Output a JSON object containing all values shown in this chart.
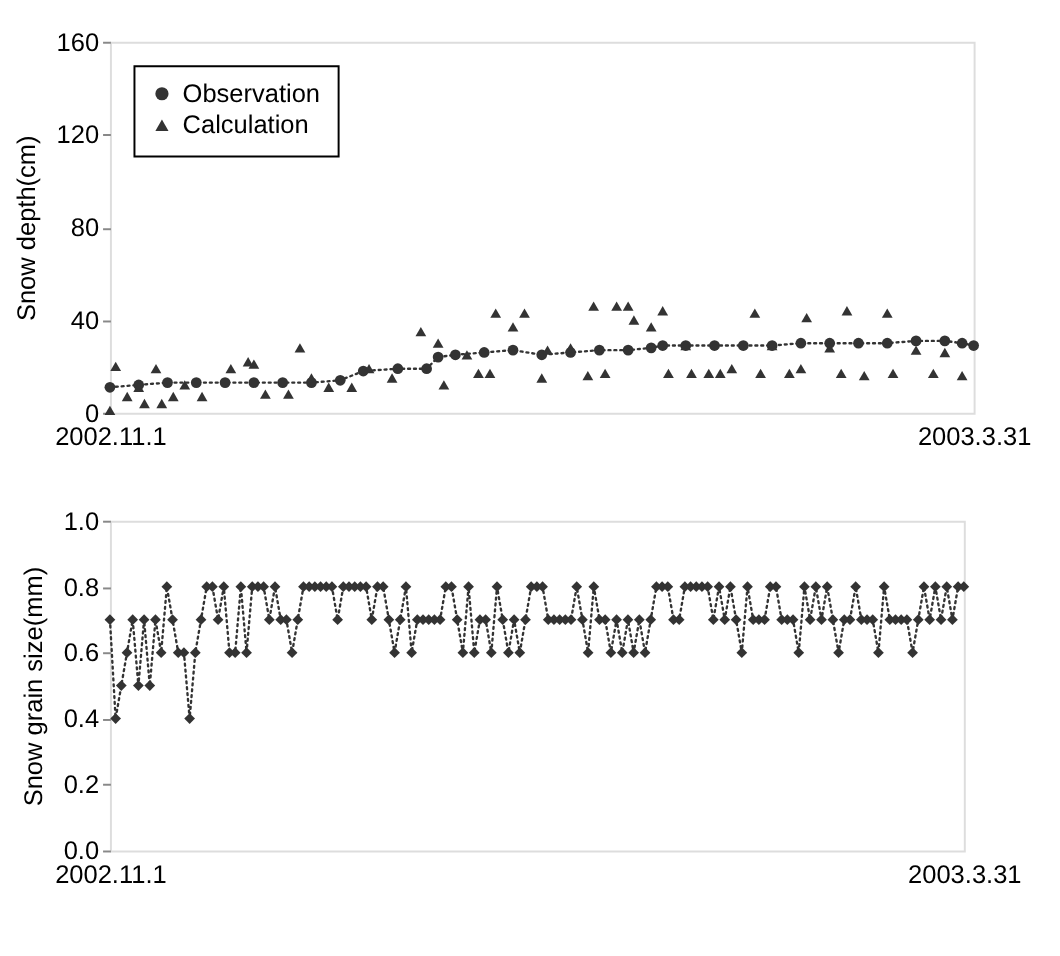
{
  "chart_data": [
    {
      "type": "line",
      "ylabel": "Snow depth(cm)",
      "xlim": [
        "2002-11-01",
        "2003-03-31"
      ],
      "xticks": [
        {
          "value": "2002-11-01",
          "label": "2002.11.1"
        },
        {
          "value": "2003-03-31",
          "label": "2003.3.31"
        }
      ],
      "ylim": [
        0,
        160
      ],
      "yticks": [
        0,
        40,
        80,
        120,
        160
      ],
      "grid": false,
      "legend": "top left",
      "series": [
        {
          "name": "Observation",
          "marker": "circle",
          "line_style": "dotted",
          "color": "#333333",
          "x": [
            "2002-11-01",
            "2002-11-06",
            "2002-11-11",
            "2002-11-16",
            "2002-11-21",
            "2002-11-26",
            "2002-12-01",
            "2002-12-06",
            "2002-12-11",
            "2002-12-15",
            "2002-12-21",
            "2002-12-26",
            "2002-12-28",
            "2002-12-31",
            "2003-01-05",
            "2003-01-10",
            "2003-01-15",
            "2003-01-20",
            "2003-01-25",
            "2003-01-30",
            "2003-02-03",
            "2003-02-05",
            "2003-02-09",
            "2003-02-14",
            "2003-02-19",
            "2003-02-24",
            "2003-03-01",
            "2003-03-06",
            "2003-03-11",
            "2003-03-16",
            "2003-03-21",
            "2003-03-26",
            "2003-03-29",
            "2003-03-31"
          ],
          "values": [
            11,
            12,
            13,
            13,
            13,
            13,
            13,
            13,
            14,
            18,
            19,
            19,
            24,
            25,
            26,
            27,
            25,
            26,
            27,
            27,
            28,
            29,
            29,
            29,
            29,
            29,
            30,
            30,
            30,
            30,
            31,
            31,
            30,
            29
          ]
        },
        {
          "name": "Calculation",
          "type": "scatter",
          "marker": "triangle",
          "color": "#333333",
          "x": [
            "2002-11-01",
            "2002-11-02",
            "2002-11-04",
            "2002-11-06",
            "2002-11-07",
            "2002-11-09",
            "2002-11-10",
            "2002-11-12",
            "2002-11-14",
            "2002-11-17",
            "2002-11-22",
            "2002-11-25",
            "2002-11-26",
            "2002-11-28",
            "2002-12-02",
            "2002-12-04",
            "2002-12-06",
            "2002-12-09",
            "2002-12-13",
            "2002-12-16",
            "2002-12-20",
            "2002-12-25",
            "2002-12-28",
            "2002-12-29",
            "2003-01-02",
            "2003-01-04",
            "2003-01-06",
            "2003-01-07",
            "2003-01-10",
            "2003-01-12",
            "2003-01-15",
            "2003-01-16",
            "2003-01-20",
            "2003-01-23",
            "2003-01-24",
            "2003-01-26",
            "2003-01-28",
            "2003-01-30",
            "2003-01-31",
            "2003-02-03",
            "2003-02-05",
            "2003-02-06",
            "2003-02-09",
            "2003-02-10",
            "2003-02-13",
            "2003-02-15",
            "2003-02-17",
            "2003-02-21",
            "2003-02-22",
            "2003-02-24",
            "2003-02-27",
            "2003-03-01",
            "2003-03-02",
            "2003-03-06",
            "2003-03-08",
            "2003-03-09",
            "2003-03-12",
            "2003-03-16",
            "2003-03-17",
            "2003-03-21",
            "2003-03-24",
            "2003-03-26",
            "2003-03-29"
          ],
          "values": [
            1,
            20,
            7,
            11,
            4,
            19,
            4,
            7,
            12,
            7,
            19,
            22,
            21,
            8,
            8,
            28,
            15,
            11,
            11,
            19,
            15,
            35,
            30,
            12,
            25,
            17,
            17,
            43,
            37,
            43,
            15,
            27,
            28,
            16,
            46,
            17,
            46,
            46,
            40,
            37,
            44,
            17,
            29,
            17,
            17,
            17,
            19,
            43,
            17,
            29,
            17,
            19,
            41,
            28,
            17,
            44,
            16,
            43,
            17,
            27,
            17,
            26,
            16
          ]
        }
      ]
    },
    {
      "type": "line",
      "ylabel": "Snow grain size(mm)",
      "xlim": [
        "2002-11-01",
        "2003-03-31"
      ],
      "xticks": [
        {
          "value": "2002-11-01",
          "label": "2002.11.1"
        },
        {
          "value": "2003-03-31",
          "label": "2003.3.31"
        }
      ],
      "ylim": [
        0,
        1
      ],
      "yticks": [
        {
          "value": 0,
          "label": "0.0"
        },
        0.2,
        0.4,
        0.6,
        0.8,
        {
          "value": 1,
          "label": "1.0"
        }
      ],
      "grid": false,
      "series": [
        {
          "marker": "diamond",
          "line_style": "dotted",
          "color": "#333333",
          "x": [
            "2002-11-01",
            "2002-11-02",
            "2002-11-03",
            "2002-11-04",
            "2002-11-05",
            "2002-11-06",
            "2002-11-07",
            "2002-11-08",
            "2002-11-09",
            "2002-11-10",
            "2002-11-11",
            "2002-11-12",
            "2002-11-13",
            "2002-11-14",
            "2002-11-15",
            "2002-11-16",
            "2002-11-17",
            "2002-11-18",
            "2002-11-19",
            "2002-11-20",
            "2002-11-21",
            "2002-11-22",
            "2002-11-23",
            "2002-11-24",
            "2002-11-25",
            "2002-11-26",
            "2002-11-27",
            "2002-11-28",
            "2002-11-29",
            "2002-11-30",
            "2002-12-01",
            "2002-12-02",
            "2002-12-03",
            "2002-12-04",
            "2002-12-05",
            "2002-12-06",
            "2002-12-07",
            "2002-12-08",
            "2002-12-09",
            "2002-12-10",
            "2002-12-11",
            "2002-12-12",
            "2002-12-13",
            "2002-12-14",
            "2002-12-15",
            "2002-12-16",
            "2002-12-17",
            "2002-12-18",
            "2002-12-19",
            "2002-12-20",
            "2002-12-21",
            "2002-12-22",
            "2002-12-23",
            "2002-12-24",
            "2002-12-25",
            "2002-12-26",
            "2002-12-27",
            "2002-12-28",
            "2002-12-29",
            "2002-12-30",
            "2002-12-31",
            "2003-01-01",
            "2003-01-02",
            "2003-01-03",
            "2003-01-04",
            "2003-01-05",
            "2003-01-06",
            "2003-01-07",
            "2003-01-08",
            "2003-01-09",
            "2003-01-10",
            "2003-01-11",
            "2003-01-12",
            "2003-01-13",
            "2003-01-14",
            "2003-01-15",
            "2003-01-16",
            "2003-01-17",
            "2003-01-18",
            "2003-01-19",
            "2003-01-20",
            "2003-01-21",
            "2003-01-22",
            "2003-01-23",
            "2003-01-24",
            "2003-01-25",
            "2003-01-26",
            "2003-01-27",
            "2003-01-28",
            "2003-01-29",
            "2003-01-30",
            "2003-01-31",
            "2003-02-01",
            "2003-02-02",
            "2003-02-03",
            "2003-02-04",
            "2003-02-05",
            "2003-02-06",
            "2003-02-07",
            "2003-02-08",
            "2003-02-09",
            "2003-02-10",
            "2003-02-11",
            "2003-02-12",
            "2003-02-13",
            "2003-02-14",
            "2003-02-15",
            "2003-02-16",
            "2003-02-17",
            "2003-02-18",
            "2003-02-19",
            "2003-02-20",
            "2003-02-21",
            "2003-02-22",
            "2003-02-23",
            "2003-02-24",
            "2003-02-25",
            "2003-02-26",
            "2003-02-27",
            "2003-02-28",
            "2003-03-01",
            "2003-03-02",
            "2003-03-03",
            "2003-03-04",
            "2003-03-05",
            "2003-03-06",
            "2003-03-07",
            "2003-03-08",
            "2003-03-09",
            "2003-03-10",
            "2003-03-11",
            "2003-03-12",
            "2003-03-13",
            "2003-03-14",
            "2003-03-15",
            "2003-03-16",
            "2003-03-17",
            "2003-03-18",
            "2003-03-19",
            "2003-03-20",
            "2003-03-21",
            "2003-03-22",
            "2003-03-23",
            "2003-03-24",
            "2003-03-25",
            "2003-03-26",
            "2003-03-27",
            "2003-03-28",
            "2003-03-29",
            "2003-03-30",
            "2003-03-31"
          ],
          "values": [
            0.7,
            0.4,
            0.5,
            0.6,
            0.7,
            0.5,
            0.7,
            0.5,
            0.7,
            0.6,
            0.8,
            0.7,
            0.6,
            0.6,
            0.4,
            0.6,
            0.7,
            0.8,
            0.8,
            0.7,
            0.8,
            0.6,
            0.6,
            0.8,
            0.6,
            0.8,
            0.8,
            0.8,
            0.7,
            0.8,
            0.7,
            0.7,
            0.6,
            0.7,
            0.8,
            0.8,
            0.8,
            0.8,
            0.8,
            0.8,
            0.7,
            0.8,
            0.8,
            0.8,
            0.8,
            0.8,
            0.7,
            0.8,
            0.8,
            0.7,
            0.6,
            0.7,
            0.8,
            0.6,
            0.7,
            0.7,
            0.7,
            0.7,
            0.7,
            0.8,
            0.8,
            0.7,
            0.6,
            0.8,
            0.6,
            0.7,
            0.7,
            0.6,
            0.8,
            0.7,
            0.6,
            0.7,
            0.6,
            0.7,
            0.8,
            0.8,
            0.8,
            0.7,
            0.7,
            0.7,
            0.7,
            0.7,
            0.8,
            0.7,
            0.6,
            0.8,
            0.7,
            0.7,
            0.6,
            0.7,
            0.6,
            0.7,
            0.6,
            0.7,
            0.6,
            0.7,
            0.8,
            0.8,
            0.8,
            0.7,
            0.7,
            0.8,
            0.8,
            0.8,
            0.8,
            0.8,
            0.7,
            0.8,
            0.7,
            0.8,
            0.7,
            0.6,
            0.8,
            0.7,
            0.7,
            0.7,
            0.8,
            0.8,
            0.7,
            0.7,
            0.7,
            0.6,
            0.8,
            0.7,
            0.8,
            0.7,
            0.8,
            0.7,
            0.6,
            0.7,
            0.7,
            0.8,
            0.7,
            0.7,
            0.7,
            0.6,
            0.8,
            0.7,
            0.7,
            0.7,
            0.7,
            0.6,
            0.7,
            0.8,
            0.7,
            0.8,
            0.7,
            0.8,
            0.7,
            0.8,
            0.8
          ]
        }
      ]
    }
  ]
}
